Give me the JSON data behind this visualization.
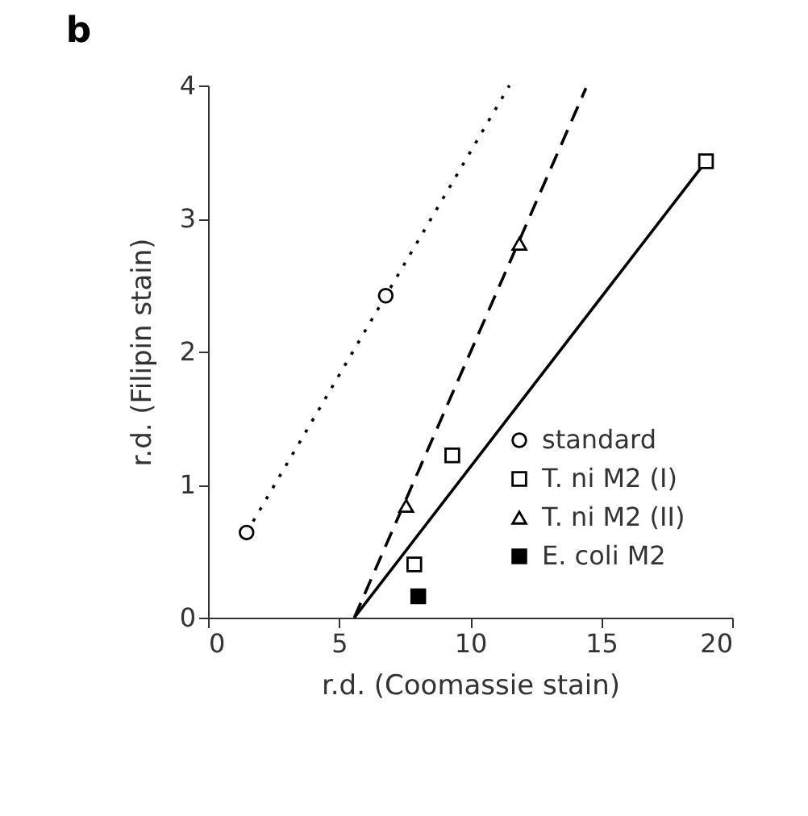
{
  "chart_data": {
    "type": "scatter",
    "title": "b",
    "xlabel": "r.d. (Coomassie stain)",
    "ylabel": "r.d. (Filipin stain)",
    "xlim": [
      0,
      20
    ],
    "xticks": [
      0,
      5,
      10,
      15,
      20
    ],
    "ylim": [
      0,
      4
    ],
    "yticks": [
      0,
      1,
      2,
      3,
      4
    ],
    "grid": false,
    "legend": "bottom right",
    "series": [
      {
        "name": "standard",
        "color": "#000000",
        "marker": "circle",
        "x": [
          1.47,
          6.78
        ],
        "values": [
          0.64,
          2.42
        ]
      },
      {
        "name": "T. ni M2 (I)",
        "color": "#000000",
        "marker": "square",
        "x": [
          7.87,
          9.32,
          19.0
        ],
        "values": [
          0.4,
          1.22,
          3.43
        ]
      },
      {
        "name": "T. ni M2 (II)",
        "color": "#000000",
        "marker": "triangle",
        "x": [
          7.56,
          11.88
        ],
        "values": [
          0.84,
          2.81
        ]
      },
      {
        "name": "E. coli M2",
        "color": "#000000",
        "marker": "cross",
        "x": [
          8.02
        ],
        "values": [
          0.16
        ]
      },
      {
        "type": "line",
        "color": "#000000",
        "line_style": "dotted",
        "x": [
          1.47,
          11.5
        ],
        "values": [
          0.64,
          4.0
        ]
      },
      {
        "type": "line",
        "color": "#000000",
        "line_style": "dashed",
        "x": [
          5.58,
          14.42
        ],
        "values": [
          0.0,
          3.98
        ]
      },
      {
        "type": "line",
        "color": "#000000",
        "line_style": "solid",
        "x": [
          5.58,
          19.0
        ],
        "values": [
          0.0,
          3.43
        ]
      }
    ]
  }
}
